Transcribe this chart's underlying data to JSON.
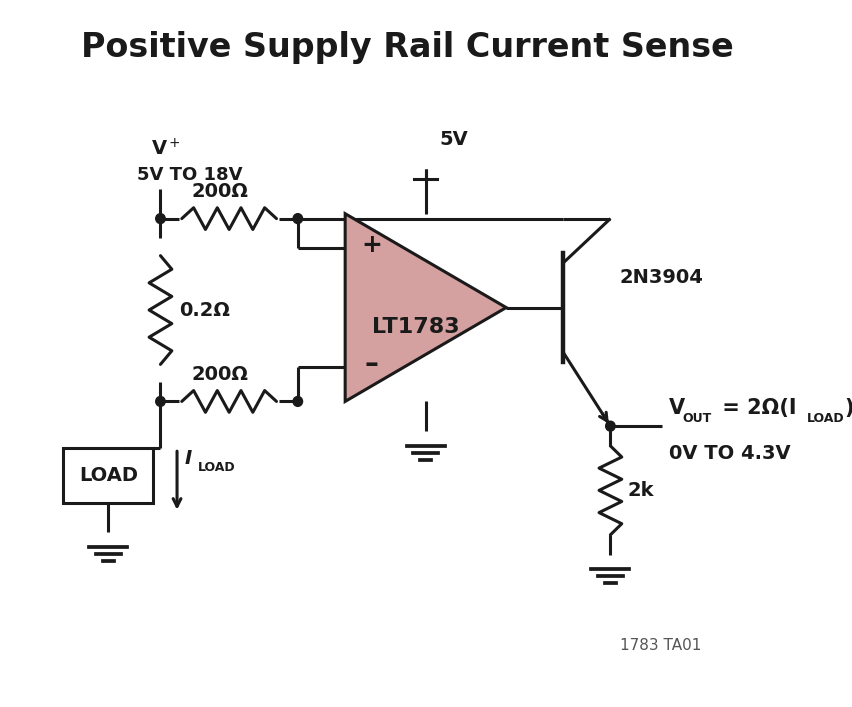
{
  "title": "Positive Supply Rail Current Sense",
  "background_color": "#ffffff",
  "line_color": "#1a1a1a",
  "op_amp_fill": "#d4a0a0",
  "op_amp_stroke": "#1a1a1a",
  "title_fontsize": 24,
  "label_fontsize": 14,
  "small_fontsize": 11,
  "footnote": "1783 TA01",
  "r1_label": "200Ω",
  "r2_label": "0.2Ω",
  "r3_label": "200Ω",
  "r4_label": "2k",
  "v5_label": "5V",
  "lt_label": "LT1783",
  "transistor_label": "2N3904",
  "load_label": "LOAD",
  "vout_range": "0V TO 4.3V"
}
